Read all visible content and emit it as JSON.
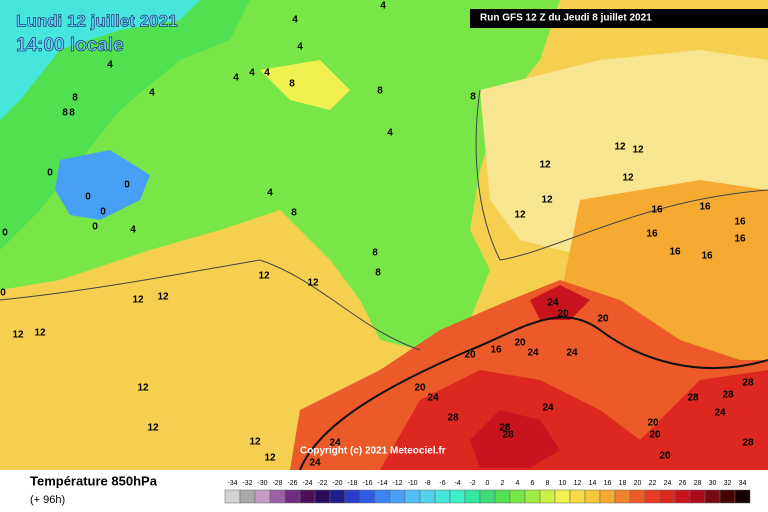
{
  "header": {
    "date": "Lundi 12 juillet 2021",
    "time": "14:00 locale",
    "run": "Run GFS 12 Z du Jeudi 8 juillet 2021"
  },
  "copyright": "Copyright (c) 2021 Meteociel.fr",
  "footer": {
    "title": "Température 850hPa",
    "lead": "(+ 96h)"
  },
  "contour_labels": [
    4,
    4,
    4,
    4,
    4,
    4,
    4,
    8,
    4,
    8,
    8,
    8,
    8,
    8,
    4,
    0,
    0,
    0,
    0,
    0,
    4,
    4,
    8,
    12,
    12,
    12,
    12,
    12,
    12,
    16,
    16,
    16,
    16,
    16,
    16,
    16,
    12,
    12,
    12,
    12,
    8,
    8,
    24,
    20,
    20,
    20,
    24,
    24,
    20,
    16,
    12,
    20,
    24,
    28,
    24,
    28,
    28,
    28,
    28,
    28,
    20,
    20,
    24,
    12,
    12,
    12,
    24,
    24,
    28,
    20,
    12,
    12,
    0,
    0
  ],
  "scale": {
    "ticks": [
      -34,
      -32,
      -30,
      -28,
      -26,
      -24,
      -22,
      -20,
      -18,
      -16,
      -14,
      -12,
      -10,
      -8,
      -6,
      -4,
      -2,
      0,
      2,
      4,
      6,
      8,
      10,
      12,
      14,
      16,
      18,
      20,
      22,
      24,
      26,
      28,
      30,
      32,
      34
    ],
    "colors": [
      "#d2d2d2",
      "#a8a8a8",
      "#c79bc8",
      "#9b5fa6",
      "#6e2d7e",
      "#4a1158",
      "#2d0a5a",
      "#1e1e8c",
      "#2a3cc8",
      "#2e5ae6",
      "#3c82f0",
      "#46a0f5",
      "#50bef5",
      "#50d2eb",
      "#46e6dc",
      "#3cf0c8",
      "#32e6a0",
      "#3cdc78",
      "#50e050",
      "#78e646",
      "#a0eb46",
      "#c8f046",
      "#f0f050",
      "#f5dc46",
      "#f5c83c",
      "#f5aa32",
      "#f0822d",
      "#eb5a28",
      "#e63c23",
      "#dc281e",
      "#c8141e",
      "#aa0a1e",
      "#780a14",
      "#460505",
      "#140000"
    ]
  }
}
